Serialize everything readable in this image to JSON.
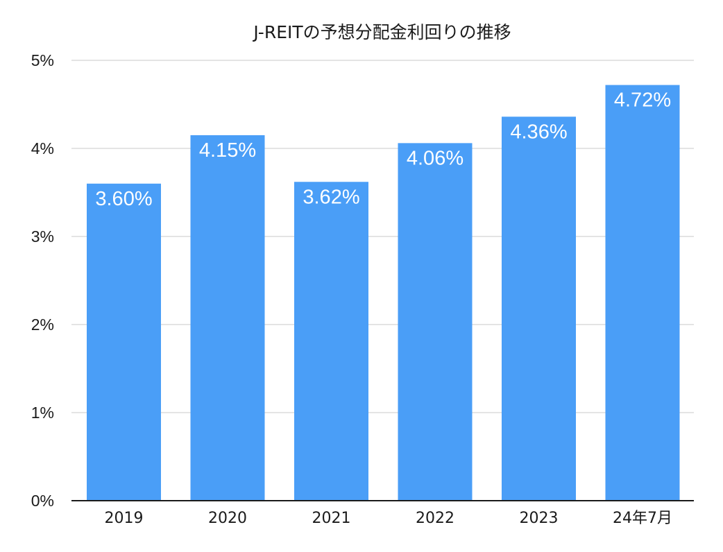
{
  "chart_data": {
    "type": "bar",
    "title": "J-REITの予想分配金利回りの推移",
    "xlabel": "",
    "ylabel": "",
    "categories": [
      "2019",
      "2020",
      "2021",
      "2022",
      "2023",
      "24年7月"
    ],
    "values": [
      3.6,
      4.15,
      3.62,
      4.06,
      4.36,
      4.72
    ],
    "value_labels": [
      "3.60%",
      "4.15%",
      "3.62%",
      "4.06%",
      "4.36%",
      "4.72%"
    ],
    "ylim": [
      0,
      5
    ],
    "yticks": [
      0,
      1,
      2,
      3,
      4,
      5
    ],
    "ytick_labels": [
      "0%",
      "1%",
      "2%",
      "3%",
      "4%",
      "5%"
    ],
    "grid": true,
    "legend": "none",
    "colors": {
      "bar": "#4a9ef7",
      "grid": "#c8c8c8",
      "axis": "#1a1a1a"
    }
  }
}
